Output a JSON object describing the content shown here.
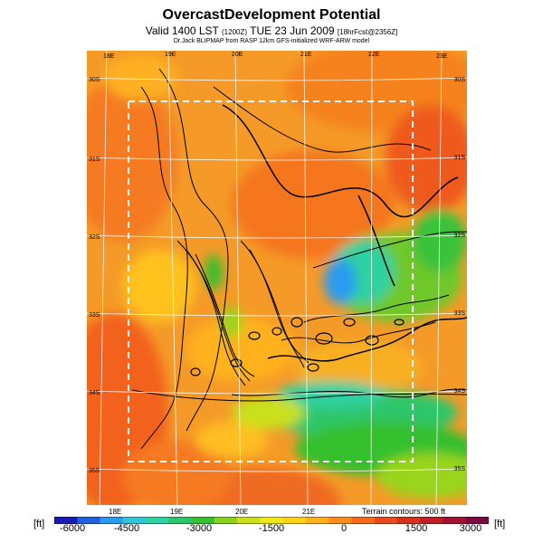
{
  "header": {
    "title": "OvercastDevelopment Potential",
    "valid_prefix": "Valid 1400 LST",
    "valid_code": "(1200Z)",
    "valid_date": "TUE 23 Jun 2009",
    "forecast_tag": "[18hrFcst@2356Z]",
    "credit": "Dr.Jack BLIPMAP from RASP 12km GFS-initialized WRF-ARW model"
  },
  "map": {
    "lon_labels_top": [
      "18E",
      "19E",
      "20E",
      "21E",
      "22E",
      "23E"
    ],
    "lon_labels_bottom": [
      "18E",
      "19E",
      "20E",
      "21E"
    ],
    "lat_labels_left": [
      "30S",
      "31S",
      "32S",
      "33S",
      "34S",
      "35S"
    ],
    "lat_labels_right": [
      "30S",
      "31S",
      "32S",
      "33S",
      "34S",
      "35S"
    ],
    "terrain_note": "Terrain contours: 500 ft"
  },
  "colorbar": {
    "unit_left": "[ft]",
    "unit_right": "[ft]",
    "min": -6000,
    "max": 3000,
    "labels": [
      "-6000",
      "-4500",
      "-3000",
      "-1500",
      "0",
      "1500",
      "3000"
    ],
    "colors": [
      "#1a1ab5",
      "#1f5fe0",
      "#2a9bf0",
      "#33c4d8",
      "#2fd1a0",
      "#2ec66a",
      "#36c02e",
      "#8ad21f",
      "#c9e01a",
      "#f0e818",
      "#ffd21a",
      "#ffb020",
      "#ff8c1e",
      "#f86a1c",
      "#ea4a1c",
      "#d8321e",
      "#c01f22",
      "#a01230",
      "#7a0a40"
    ]
  }
}
